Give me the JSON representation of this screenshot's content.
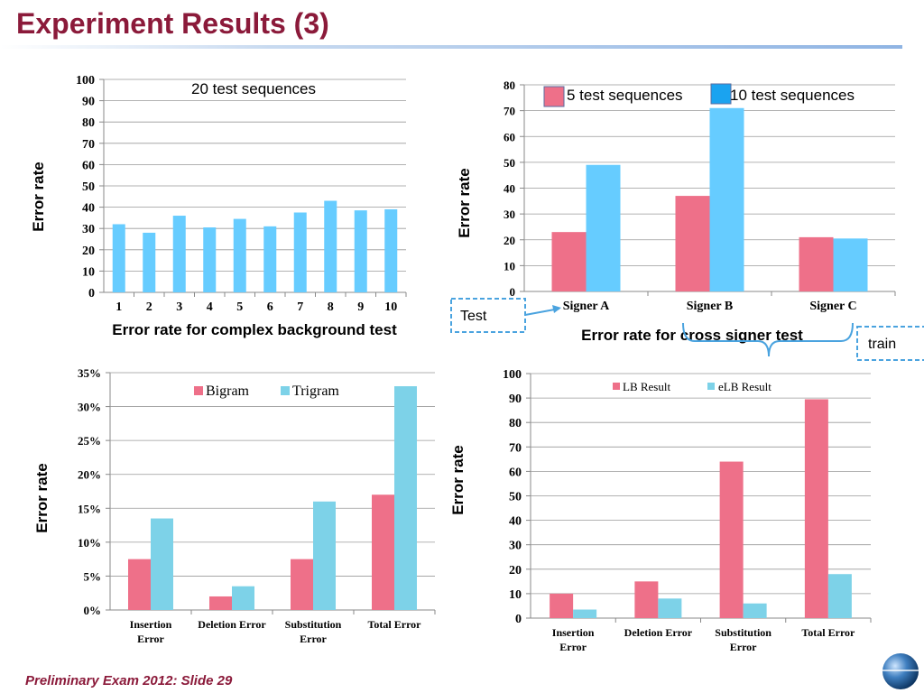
{
  "slide": {
    "title": "Experiment Results (3)",
    "footer": "Preliminary Exam 2012: Slide 29"
  },
  "colors": {
    "title": "#8B1A3A",
    "pink": "#EE7089",
    "sky": "#66CCFF",
    "light_blue": "#7DD2E8",
    "callout": "#4AA3DF"
  },
  "annotations": {
    "test_label": "Test",
    "train_label": "train"
  },
  "chart_data": [
    {
      "id": "c1",
      "type": "bar",
      "categories": [
        "1",
        "2",
        "3",
        "4",
        "5",
        "6",
        "7",
        "8",
        "9",
        "10"
      ],
      "series": [
        {
          "values": [
            32,
            28,
            36,
            30.5,
            34.5,
            31,
            37.5,
            43,
            38.5,
            39
          ]
        }
      ],
      "annotation": "20 test sequences",
      "ylabel": "Error   rate",
      "xlabel": "Error rate for complex background test",
      "ylim": [
        0,
        100
      ],
      "yticks": [
        0,
        10,
        20,
        30,
        40,
        50,
        60,
        70,
        80,
        90,
        100
      ],
      "grid": true
    },
    {
      "id": "c2",
      "type": "bar",
      "categories": [
        "Signer A",
        "Signer B",
        "Signer C"
      ],
      "series": [
        {
          "name": "5 test sequences",
          "values": [
            23,
            37,
            21
          ]
        },
        {
          "name": "10 test sequences",
          "values": [
            49,
            71,
            20.5
          ]
        }
      ],
      "ylabel": "Error   rate",
      "xlabel": "Error rate for cross signer test",
      "ylim": [
        0,
        80
      ],
      "yticks": [
        0,
        10,
        20,
        30,
        40,
        50,
        60,
        70,
        80
      ],
      "grid": true,
      "legend": "top"
    },
    {
      "id": "c3",
      "type": "bar",
      "categories": [
        "Insertion Error",
        "Deletion Error",
        "Substitution Error",
        "Total Error"
      ],
      "series": [
        {
          "name": "Bigram",
          "values": [
            7.5,
            2,
            7.5,
            17
          ]
        },
        {
          "name": "Trigram",
          "values": [
            13.5,
            3.5,
            16,
            33
          ]
        }
      ],
      "ylabel": "Error   rate",
      "ylim": [
        0,
        35
      ],
      "yticks": [
        "0%",
        "5%",
        "10%",
        "15%",
        "20%",
        "25%",
        "30%",
        "35%"
      ],
      "grid": true,
      "legend": "top"
    },
    {
      "id": "c4",
      "type": "bar",
      "categories": [
        "Insertion Error",
        "Deletion Error",
        "Substitution Error",
        "Total Error"
      ],
      "series": [
        {
          "name": "LB Result",
          "values": [
            10,
            15,
            64,
            89.5
          ]
        },
        {
          "name": "eLB Result",
          "values": [
            3.5,
            8,
            6,
            18
          ]
        }
      ],
      "ylabel": "Error   rate",
      "ylim": [
        0,
        100
      ],
      "yticks": [
        0,
        10,
        20,
        30,
        40,
        50,
        60,
        70,
        80,
        90,
        100
      ],
      "grid": true,
      "legend": "top"
    }
  ]
}
